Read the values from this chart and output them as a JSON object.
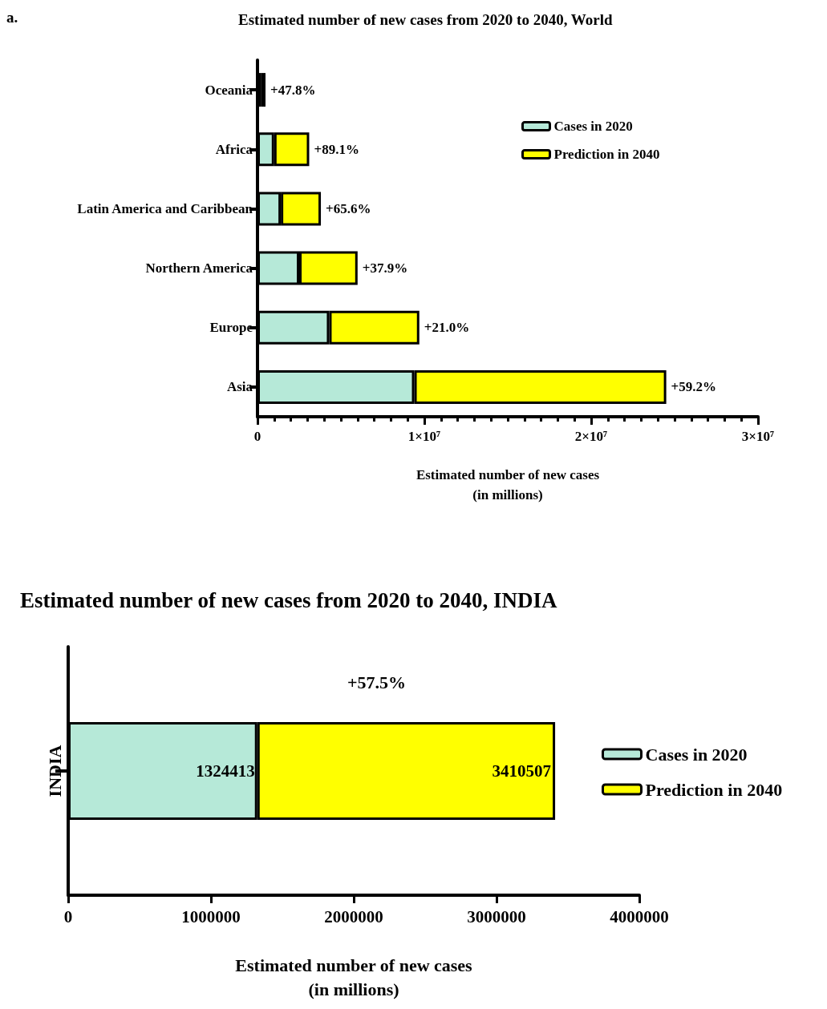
{
  "chart_data": [
    {
      "type": "bar",
      "title": "Estimated number of new cases from 2020 to 2040, World",
      "xlabel": "Estimated number of new cases\n(in millions)",
      "orientation": "horizontal",
      "stacked": true,
      "categories": [
        "Oceania",
        "Africa",
        "Latin America and Caribbean",
        "Northern America",
        "Europe",
        "Asia"
      ],
      "series": [
        {
          "name": "Cases in 2020",
          "color": "#b6e9d8",
          "values": [
            200000,
            1000000,
            1400000,
            2500000,
            4300000,
            9400000
          ]
        },
        {
          "name": "Prediction in 2040",
          "color": "#ffff00",
          "values": [
            280000,
            2100000,
            2400000,
            3500000,
            5400000,
            15100000
          ]
        }
      ],
      "xlim": [
        0,
        30000000
      ],
      "xticks": [
        0,
        {
          "value": 10000000,
          "label": "1×10⁷"
        },
        {
          "value": 20000000,
          "label": "2×10⁷"
        },
        {
          "value": 30000000,
          "label": "3×10⁷"
        }
      ],
      "legend": "top right",
      "grid": false,
      "annotations": [
        "a.",
        {
          "text": "+47.8%",
          "x": 480000,
          "y": "Oceania"
        },
        {
          "text": "+89.1%",
          "x": 3100000,
          "y": "Africa"
        },
        {
          "text": "+65.6%",
          "x": 3800000,
          "y": "Latin America and Caribbean"
        },
        {
          "text": "+37.9%",
          "x": 6000000,
          "y": "Northern America"
        },
        {
          "text": "+21.0%",
          "x": 9700000,
          "y": "Europe"
        },
        {
          "text": "+59.2%",
          "x": 24500000,
          "y": "Asia"
        }
      ]
    },
    {
      "type": "bar",
      "title": "Estimated number of new cases from 2020 to 2040, INDIA",
      "xlabel": "Estimated number of new cases\n(in millions)",
      "orientation": "horizontal",
      "stacked": true,
      "categories": [
        "INDIA"
      ],
      "series": [
        {
          "name": "Cases in 2020",
          "color": "#b6e9d8",
          "values": [
            1324413
          ],
          "value_labels": [
            "1324413"
          ]
        },
        {
          "name": "Prediction in 2040",
          "color": "#ffff00",
          "values": [
            2086094
          ]
        }
      ],
      "xlim": [
        0,
        4000000
      ],
      "xticks": [
        0,
        1000000,
        2000000,
        3000000,
        4000000
      ],
      "legend": "right",
      "grid": false,
      "annotations": [
        "+57.5%",
        {
          "text": "3410507",
          "x": 3410507,
          "y": "INDIA"
        }
      ]
    }
  ]
}
